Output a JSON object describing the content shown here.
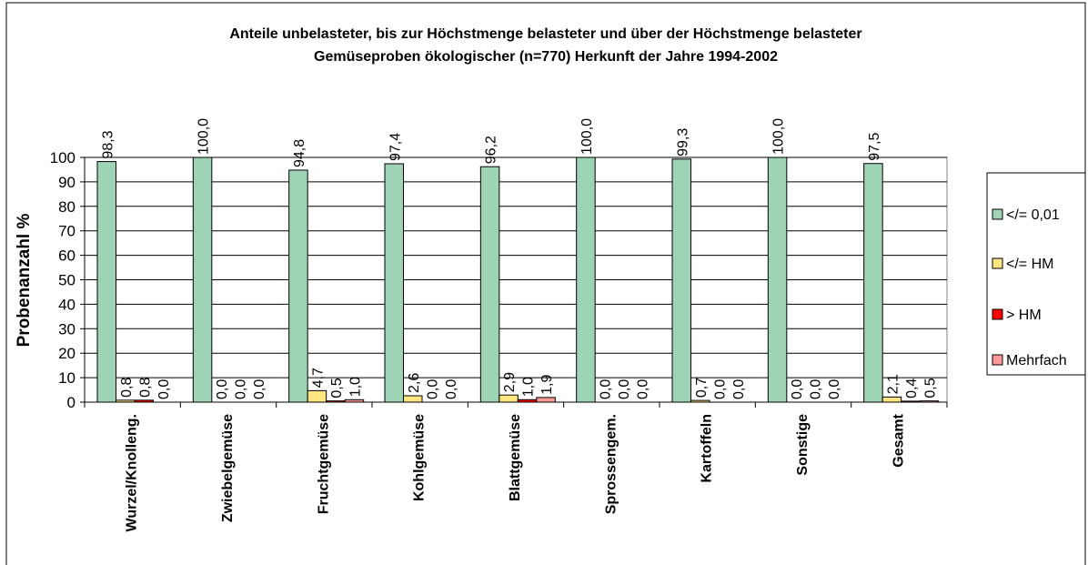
{
  "chart_data": {
    "type": "bar",
    "title": [
      "Anteile unbelasteter, bis zur Höchstmenge belasteter und über der Höchstmenge belasteter",
      "Gemüseproben ökologischer (n=770) Herkunft  der Jahre 1994-2002"
    ],
    "y_label": "Probenanzahl %",
    "categories": [
      "Wurzel/Knolleng.",
      "Zwiebelgemüse",
      "Fruchtgemüse",
      "Kohlgemüse",
      "Blattgemüse",
      "Sprossengem.",
      "Kartoffeln",
      "Sonstige",
      "Gesamt"
    ],
    "series": [
      {
        "name": "</= 0,01",
        "color": "#9fd3b5",
        "values": [
          98.3,
          100.0,
          94.8,
          97.4,
          96.2,
          100.0,
          99.3,
          100.0,
          97.5
        ],
        "value_labels": [
          "98,3",
          "100,0",
          "94,8",
          "97,4",
          "96,2",
          "100,0",
          "99,3",
          "100,0",
          "97,5"
        ]
      },
      {
        "name": "</= HM",
        "color": "#ffe680",
        "values": [
          0.8,
          0.0,
          4.7,
          2.6,
          2.9,
          0.0,
          0.7,
          0.0,
          2.1
        ],
        "value_labels": [
          "0,8",
          "0,0",
          "4,7",
          "2,6",
          "2,9",
          "0,0",
          "0,7",
          "0,0",
          "2,1"
        ]
      },
      {
        "name": "> HM",
        "color": "#ff0000",
        "values": [
          0.8,
          0.0,
          0.5,
          0.0,
          1.0,
          0.0,
          0.0,
          0.0,
          0.4
        ],
        "value_labels": [
          "0,8",
          "0,0",
          "0,5",
          "0,0",
          "1,0",
          "0,0",
          "0,0",
          "0,0",
          "0,4"
        ]
      },
      {
        "name": "Mehrfach",
        "color": "#ff9999",
        "values": [
          0.0,
          0.0,
          1.0,
          0.0,
          1.9,
          0.0,
          0.0,
          0.0,
          0.5
        ],
        "value_labels": [
          "0,0",
          "0,0",
          "1,0",
          "0,0",
          "1,9",
          "0,0",
          "0,0",
          "0,0",
          "0,5"
        ]
      }
    ],
    "ylim": [
      0,
      100
    ],
    "yticks": [
      0,
      10,
      20,
      30,
      40,
      50,
      60,
      70,
      80,
      90,
      100
    ],
    "grid": true,
    "legend": "right"
  }
}
